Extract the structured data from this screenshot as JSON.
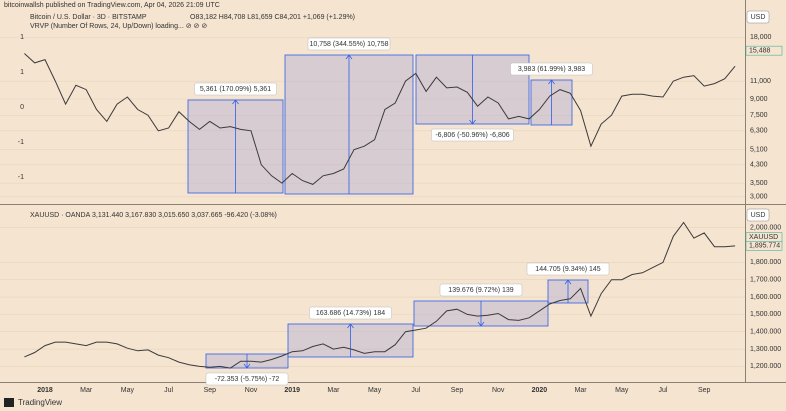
{
  "header": {
    "publisher": "bitcoinwallsh published on TradingView.com, Apr 04, 2026 21:09 UTC"
  },
  "time_axis": {
    "categories": [
      null,
      null,
      "2018",
      null,
      null,
      null,
      "Mar",
      null,
      null,
      null,
      "May",
      null,
      null,
      null,
      "Jul",
      null,
      null,
      null,
      "Sep",
      null,
      null,
      null,
      "Nov",
      null,
      null,
      null,
      "2019",
      null,
      null,
      null,
      "Mar",
      null,
      null,
      null,
      "May",
      null,
      null,
      null,
      "Jul",
      null,
      null,
      null,
      "Sep",
      null,
      null,
      null,
      "Nov",
      null,
      null,
      null,
      "2020",
      null,
      null,
      null,
      "Mar",
      null,
      null,
      null,
      "May",
      null,
      null,
      null,
      "Jul",
      null,
      null,
      null,
      "Sep",
      null,
      null,
      null
    ]
  },
  "chart_data": [
    {
      "type": "line",
      "currency": "USD",
      "ohlc_text": "O83,182 H84,708 L81,659 C84,201 +1,069 (+1.29%)",
      "indicator_text": "VRVP (Number Of Rows, 24, Up/Down) loading... ⊘ ⊘ ⊘",
      "log_scale": true,
      "grid": true,
      "series": [
        {
          "name": "Bitcoin / U.S. Dollar · 3D · BITSTAMP",
          "color": "#3b3b3b",
          "values": [
            15000,
            13500,
            14000,
            11000,
            8500,
            10500,
            10000,
            8000,
            7000,
            8500,
            9200,
            8000,
            7500,
            6300,
            6500,
            7800,
            7000,
            6400,
            7000,
            6500,
            6600,
            6400,
            6300,
            4300,
            3800,
            3500,
            3900,
            3600,
            3450,
            3800,
            3900,
            4100,
            5100,
            5300,
            5700,
            8000,
            8600,
            11000,
            12000,
            9800,
            11500,
            10200,
            10300,
            9700,
            8300,
            9200,
            8600,
            7200,
            7400,
            7200,
            8000,
            9300,
            10000,
            9600,
            7900,
            5300,
            6800,
            7500,
            9300,
            9500,
            9500,
            9300,
            9200,
            11000,
            11500,
            11700,
            10400,
            10700,
            11300,
            13000
          ]
        }
      ],
      "ylim": [
        2800,
        25000
      ],
      "yticks": [
        {
          "value": 18000,
          "label": "18,000"
        },
        {
          "value": 11000,
          "label": "11,000"
        },
        {
          "value": 9000,
          "label": "9,000"
        },
        {
          "value": 7500,
          "label": "7,500"
        },
        {
          "value": 6300,
          "label": "6,300"
        },
        {
          "value": 5100,
          "label": "5,100"
        },
        {
          "value": 4300,
          "label": "4,300"
        },
        {
          "value": 3500,
          "label": "3,500"
        },
        {
          "value": 3000,
          "label": "3,000"
        }
      ],
      "left_scale": [
        "1",
        "1",
        "0",
        "-1",
        "-1"
      ],
      "last_price": {
        "value": 15488,
        "label": "15,488",
        "color": "#26a69a"
      },
      "measurements": [
        {
          "label": "5,361 (170.09%) 5,361"
        },
        {
          "label": "10,758 (344.55%) 10,758"
        },
        {
          "label": "-6,806 (-50.96%) -6,806"
        },
        {
          "label": "3,983 (61.99%) 3,983"
        }
      ]
    },
    {
      "type": "line",
      "currency": "USD",
      "ohlc_text": "3,131.440 3,167.830 3,015.650 3,037.665 -96.420 (-3.08%)",
      "log_scale": false,
      "grid": true,
      "series": [
        {
          "name": "XAUUSD · OANDA",
          "color": "#3b3b3b",
          "values": [
            1255,
            1280,
            1320,
            1340,
            1340,
            1330,
            1320,
            1340,
            1340,
            1330,
            1305,
            1290,
            1295,
            1265,
            1250,
            1225,
            1210,
            1200,
            1195,
            1200,
            1190,
            1230,
            1230,
            1225,
            1240,
            1260,
            1285,
            1290,
            1315,
            1330,
            1300,
            1310,
            1295,
            1275,
            1285,
            1285,
            1325,
            1400,
            1410,
            1420,
            1460,
            1520,
            1530,
            1500,
            1490,
            1495,
            1505,
            1470,
            1465,
            1480,
            1520,
            1560,
            1580,
            1590,
            1650,
            1490,
            1620,
            1700,
            1700,
            1730,
            1740,
            1770,
            1800,
            1950,
            2030,
            1940,
            1970,
            1890,
            1890,
            1895
          ]
        }
      ],
      "ylim": [
        1110,
        2125
      ],
      "yticks": [
        {
          "value": 2000,
          "label": "2,000.000"
        },
        {
          "value": 1800,
          "label": "1,800.000"
        },
        {
          "value": 1700,
          "label": "1,700.000"
        },
        {
          "value": 1600,
          "label": "1,600.000"
        },
        {
          "value": 1500,
          "label": "1,500.000"
        },
        {
          "value": 1400,
          "label": "1,400.000"
        },
        {
          "value": 1300,
          "label": "1,300.000"
        },
        {
          "value": 1200,
          "label": "1,200.000"
        }
      ],
      "last_price": {
        "value": 1895.774,
        "label": "1,895.774",
        "color": "#26a69a",
        "symbol": "XAUUSD"
      },
      "measurements": [
        {
          "label": "-72.353 (-5.75%) -72"
        },
        {
          "label": "163.686 (14.73%) 184"
        },
        {
          "label": "139.676 (9.72%) 139"
        },
        {
          "label": "144.705 (9.34%) 145"
        }
      ]
    }
  ],
  "footer": {
    "brand": "TradingView"
  }
}
